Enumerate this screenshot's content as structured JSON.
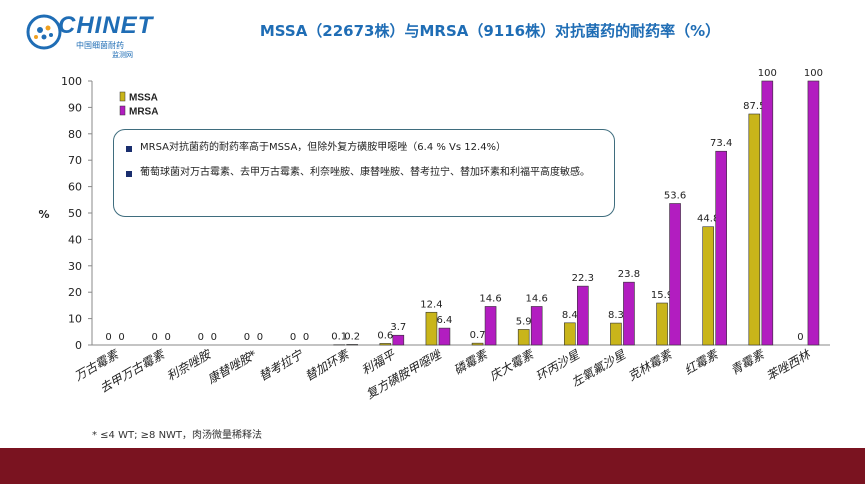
{
  "logo": {
    "name": "CHINET",
    "sub1": "中国细菌耐药",
    "sub2": "监测网"
  },
  "title": "MSSA（22673株）与MRSA（9116株）对抗菌药的耐药率（%）",
  "footnote": "* ≤4 WT; ≥8 NWT，肉汤微量稀释法",
  "colors": {
    "mssa": "#c9b51a",
    "mrsa": "#b21dc0",
    "title": "#1f6db5",
    "bottom_bar": "#7a1320"
  },
  "annotation": {
    "items": [
      "MRSA对抗菌药的耐药率高于MSSA，但除外复方磺胺甲噁唑（6.4 % Vs 12.4%）",
      "葡萄球菌对万古霉素、去甲万古霉素、利奈唑胺、康替唑胺、替考拉宁、替加环素和利福平高度敏感。"
    ]
  },
  "chart_data": {
    "type": "bar",
    "ylabel": "%",
    "ylim": [
      0,
      100
    ],
    "yticks": [
      0,
      10,
      20,
      30,
      40,
      50,
      60,
      70,
      80,
      90,
      100
    ],
    "legend_position": "top-left",
    "categories": [
      "万古霉素",
      "去甲万古霉素",
      "利奈唑胺",
      "康替唑胺*",
      "替考拉宁",
      "替加环素",
      "利福平",
      "复方磺胺甲噁唑",
      "磷霉素",
      "庆大霉素",
      "环丙沙星",
      "左氧氟沙星",
      "克林霉素",
      "红霉素",
      "青霉素",
      "苯唑西林"
    ],
    "series": [
      {
        "name": "MSSA",
        "values": [
          0,
          0,
          0,
          0,
          0,
          0.1,
          0.6,
          12.4,
          0.7,
          5.9,
          8.4,
          8.3,
          15.9,
          44.8,
          87.5,
          0
        ]
      },
      {
        "name": "MRSA",
        "values": [
          0,
          0,
          0,
          0,
          0,
          0.2,
          3.7,
          6.4,
          14.6,
          14.6,
          22.3,
          23.8,
          53.6,
          73.4,
          100,
          100
        ]
      }
    ]
  }
}
